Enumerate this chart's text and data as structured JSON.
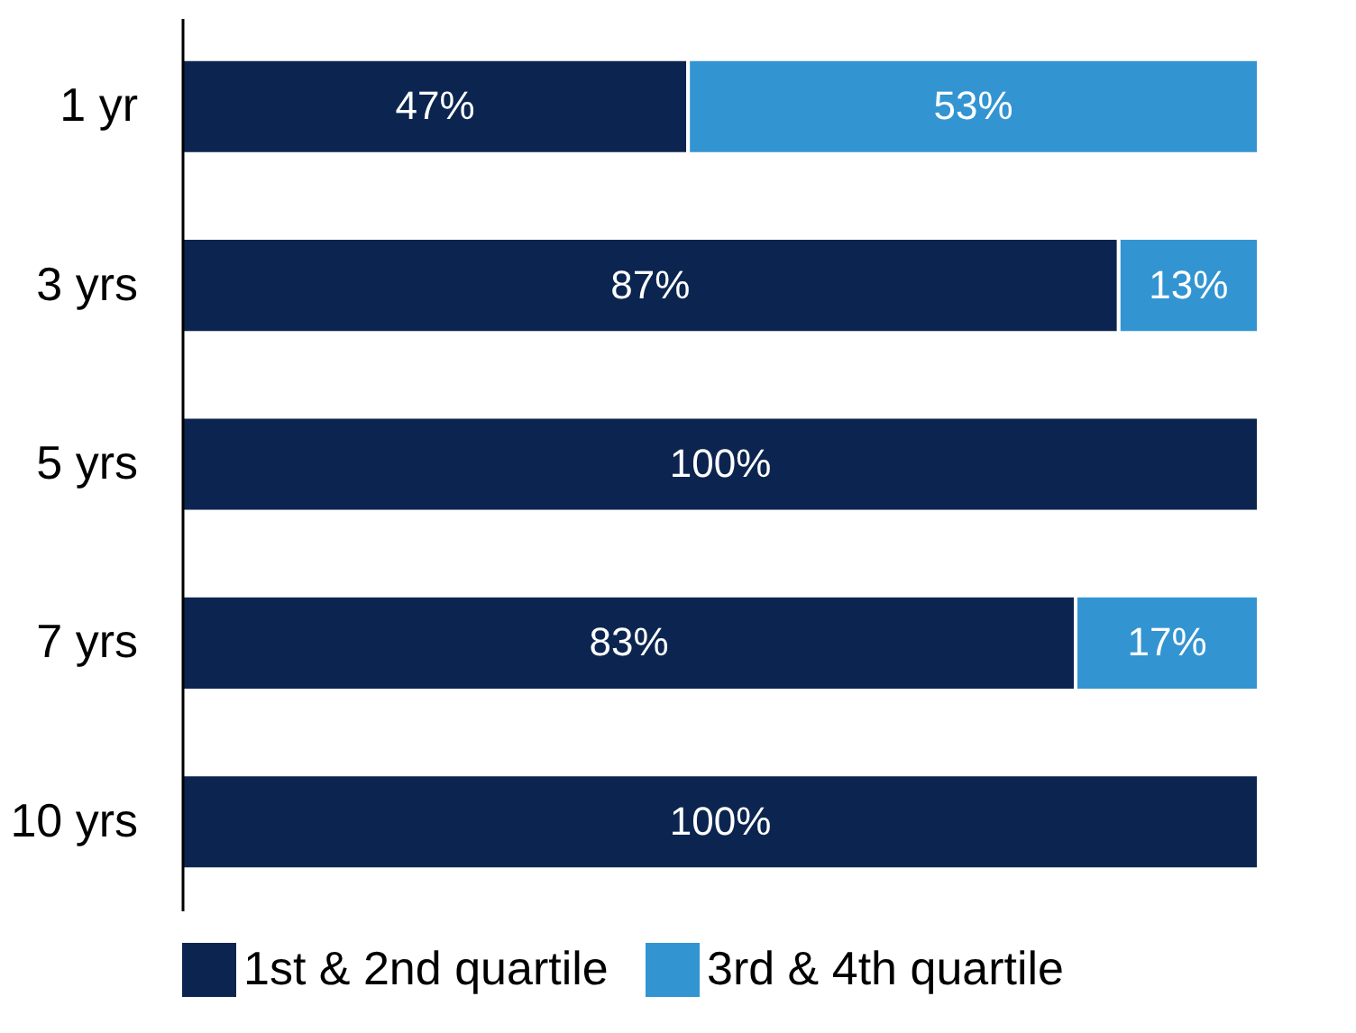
{
  "chart_data": {
    "type": "bar",
    "orientation": "horizontal",
    "stacked": true,
    "categories": [
      "1 yr",
      "3 yrs",
      "5 yrs",
      "7 yrs",
      "10 yrs"
    ],
    "series": [
      {
        "name": "1st & 2nd quartile",
        "color": "#0c2550",
        "values": [
          47,
          87,
          100,
          83,
          100
        ],
        "value_labels": [
          "47%",
          "87%",
          "100%",
          "83%",
          "100%"
        ]
      },
      {
        "name": "3rd & 4th quartile",
        "color": "#3394d2",
        "values": [
          53,
          13,
          null,
          17,
          null
        ],
        "value_labels": [
          "53%",
          "13%",
          null,
          "17%",
          null
        ]
      }
    ],
    "xlim": [
      0,
      100
    ],
    "tick_labels": "y",
    "legend": "bottom"
  }
}
